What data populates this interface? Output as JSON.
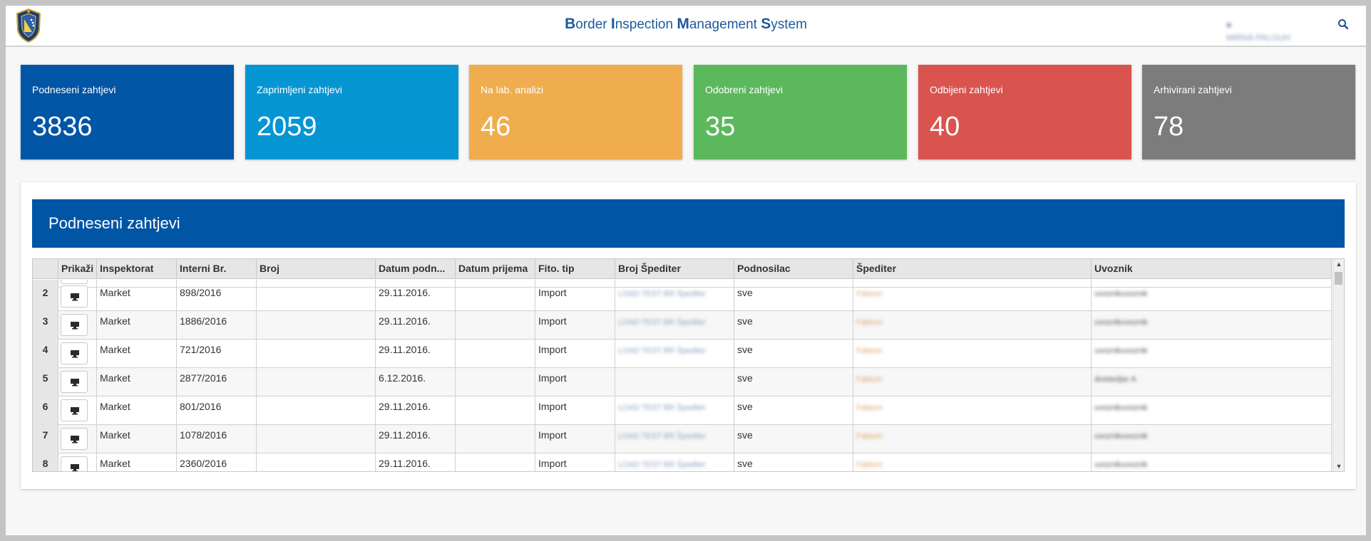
{
  "header": {
    "title_parts": [
      {
        "cap": "B",
        "rest": "order "
      },
      {
        "cap": "I",
        "rest": "nspection "
      },
      {
        "cap": "M",
        "rest": "anagement "
      },
      {
        "cap": "S",
        "rest": "ystem"
      }
    ],
    "user_name": "MIRNA PALOUH",
    "icons": {
      "logo": "police-badge-icon",
      "search": "search-icon",
      "user": "user-icon"
    },
    "accent_color": "#1d5a9e"
  },
  "tiles": [
    {
      "label": "Podneseni zahtjevi",
      "value": "3836",
      "color": "#0055a5"
    },
    {
      "label": "Zaprimljeni zahtjevi",
      "value": "2059",
      "color": "#0595d3"
    },
    {
      "label": "Na lab. analizi",
      "value": "46",
      "color": "#f0ad4e"
    },
    {
      "label": "Odobreni zahtjevi",
      "value": "35",
      "color": "#5cb85c"
    },
    {
      "label": "Odbijeni zahtjevi",
      "value": "40",
      "color": "#d9534f"
    },
    {
      "label": "Arhivirani zahtjevi",
      "value": "78",
      "color": "#7c7c7c"
    }
  ],
  "panel": {
    "title": "Podneseni zahtjevi",
    "header_color": "#0055a5"
  },
  "table": {
    "columns": [
      "",
      "Prikaži",
      "Inspektorat",
      "Interni Br.",
      "Broj",
      "Datum podn...",
      "Datum prijema",
      "Fito. tip",
      "Broj Špediter",
      "Podnosilac",
      "Špediter",
      "Uvoznik"
    ],
    "rows": [
      {
        "num": "2",
        "inspektorat": "Market",
        "interni": "898/2016",
        "broj": "",
        "datum_podn": "29.11.2016.",
        "datum_prijema": "",
        "fito": "Import",
        "broj_sped": "LOAD TEST BR Špediter",
        "podnosilac": "sve",
        "spediter": "Fabium",
        "uvoznik": "uvoznikuvoznik"
      },
      {
        "num": "3",
        "inspektorat": "Market",
        "interni": "1886/2016",
        "broj": "",
        "datum_podn": "29.11.2016.",
        "datum_prijema": "",
        "fito": "Import",
        "broj_sped": "LOAD TEST BR Špediter",
        "podnosilac": "sve",
        "spediter": "Fabium",
        "uvoznik": "uvoznikuvoznik"
      },
      {
        "num": "4",
        "inspektorat": "Market",
        "interni": "721/2016",
        "broj": "",
        "datum_podn": "29.11.2016.",
        "datum_prijema": "",
        "fito": "Import",
        "broj_sped": "LOAD TEST BR Špediter",
        "podnosilac": "sve",
        "spediter": "Fabium",
        "uvoznik": "uvoznikuvoznik"
      },
      {
        "num": "5",
        "inspektorat": "Market",
        "interni": "2877/2016",
        "broj": "",
        "datum_podn": "6.12.2016.",
        "datum_prijema": "",
        "fito": "Import",
        "broj_sped": "",
        "podnosilac": "sve",
        "spediter": "Fabium",
        "uvoznik": "dostavljac A"
      },
      {
        "num": "6",
        "inspektorat": "Market",
        "interni": "801/2016",
        "broj": "",
        "datum_podn": "29.11.2016.",
        "datum_prijema": "",
        "fito": "Import",
        "broj_sped": "LOAD TEST BR Špediter",
        "podnosilac": "sve",
        "spediter": "Fabium",
        "uvoznik": "uvoznikuvoznik"
      },
      {
        "num": "7",
        "inspektorat": "Market",
        "interni": "1078/2016",
        "broj": "",
        "datum_podn": "29.11.2016.",
        "datum_prijema": "",
        "fito": "Import",
        "broj_sped": "LOAD TEST BR Špediter",
        "podnosilac": "sve",
        "spediter": "Fabium",
        "uvoznik": "uvoznikuvoznik"
      },
      {
        "num": "8",
        "inspektorat": "Market",
        "interni": "2360/2016",
        "broj": "",
        "datum_podn": "29.11.2016.",
        "datum_prijema": "",
        "fito": "Import",
        "broj_sped": "LOAD TEST BR Špediter",
        "podnosilac": "sve",
        "spediter": "Fabium",
        "uvoznik": "uvoznikuvoznik"
      }
    ],
    "view_icon": "monitor-icon",
    "scroll_icons": {
      "up": "scroll-up-arrow-icon",
      "down": "scroll-down-arrow-icon"
    }
  }
}
